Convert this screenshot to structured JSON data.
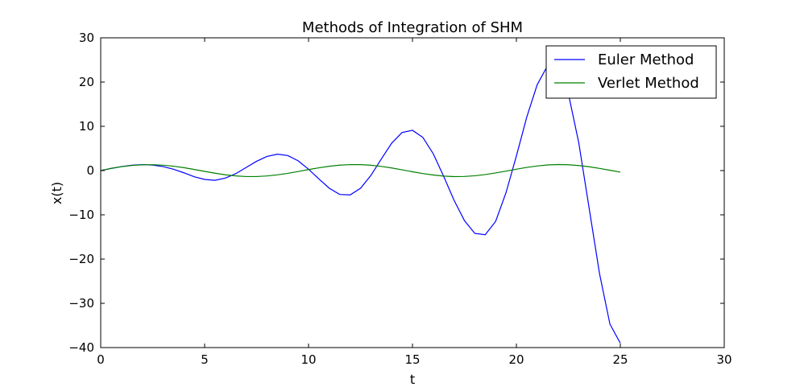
{
  "chart_data": {
    "type": "line",
    "title": "Methods of Integration of SHM",
    "xlabel": "t",
    "ylabel": "x(t)",
    "xlim": [
      0,
      30
    ],
    "ylim": [
      -40,
      30
    ],
    "xticks": [
      0,
      5,
      10,
      15,
      20,
      25,
      30
    ],
    "yticks": [
      30,
      20,
      10,
      0,
      -10,
      -20,
      -30,
      -40
    ],
    "xtick_labels": [
      "0",
      "5",
      "10",
      "15",
      "20",
      "25",
      "30"
    ],
    "ytick_labels": [
      "30",
      "20",
      "10",
      "0",
      "−10",
      "−20",
      "−30",
      "−40"
    ],
    "grid": false,
    "legend": {
      "placement": "top-right"
    },
    "series": [
      {
        "name": "Euler Method",
        "color": "#0000ff",
        "x": [
          0,
          0.5,
          1.0,
          1.5,
          2.0,
          2.5,
          3.0,
          3.5,
          4.0,
          4.5,
          5.0,
          5.5,
          6.0,
          6.5,
          7.0,
          7.5,
          8.0,
          8.5,
          9.0,
          9.5,
          10.0,
          10.5,
          11.0,
          11.5,
          12.0,
          12.5,
          13.0,
          13.5,
          14.0,
          14.5,
          15.0,
          15.5,
          16.0,
          16.5,
          17.0,
          17.5,
          18.0,
          18.5,
          19.0,
          19.5,
          20.0,
          20.5,
          21.0,
          21.5,
          22.0,
          22.5,
          23.0,
          23.5,
          24.0,
          24.5,
          25.0
        ],
        "y": [
          0.0,
          0.48,
          0.9,
          1.22,
          1.35,
          1.25,
          0.9,
          0.3,
          -0.5,
          -1.4,
          -2.0,
          -2.2,
          -1.7,
          -0.7,
          0.7,
          2.1,
          3.2,
          3.7,
          3.4,
          2.2,
          0.3,
          -1.9,
          -4.0,
          -5.4,
          -5.5,
          -4.0,
          -1.1,
          2.6,
          6.2,
          8.6,
          9.1,
          7.5,
          3.8,
          -1.3,
          -6.7,
          -11.3,
          -14.2,
          -14.5,
          -11.5,
          -5.0,
          3.3,
          12.1,
          19.4,
          23.7,
          23.3,
          17.4,
          6.3,
          -8.5,
          -23.3,
          -34.7,
          -39.0
        ]
      },
      {
        "name": "Verlet Method",
        "color": "#008000",
        "x": [
          0,
          0.5,
          1.0,
          1.5,
          2.0,
          2.5,
          3.0,
          3.5,
          4.0,
          4.5,
          5.0,
          5.5,
          6.0,
          6.5,
          7.0,
          7.5,
          8.0,
          8.5,
          9.0,
          9.5,
          10.0,
          10.5,
          11.0,
          11.5,
          12.0,
          12.5,
          13.0,
          13.5,
          14.0,
          14.5,
          15.0,
          15.5,
          16.0,
          16.5,
          17.0,
          17.5,
          18.0,
          18.5,
          19.0,
          19.5,
          20.0,
          20.5,
          21.0,
          21.5,
          22.0,
          22.5,
          23.0,
          23.5,
          24.0,
          24.5,
          25.0
        ],
        "y": [
          0.0,
          0.5,
          0.88,
          1.15,
          1.31,
          1.33,
          1.22,
          0.99,
          0.66,
          0.25,
          -0.18,
          -0.59,
          -0.95,
          -1.21,
          -1.35,
          -1.35,
          -1.22,
          -0.97,
          -0.62,
          -0.21,
          0.23,
          0.63,
          0.98,
          1.23,
          1.35,
          1.34,
          1.2,
          0.94,
          0.59,
          0.17,
          -0.27,
          -0.67,
          -1.0,
          -1.25,
          -1.36,
          -1.33,
          -1.17,
          -0.9,
          -0.54,
          -0.12,
          0.31,
          0.71,
          1.03,
          1.27,
          1.36,
          1.32,
          1.14,
          0.86,
          0.49,
          0.07,
          -0.35
        ]
      }
    ]
  }
}
